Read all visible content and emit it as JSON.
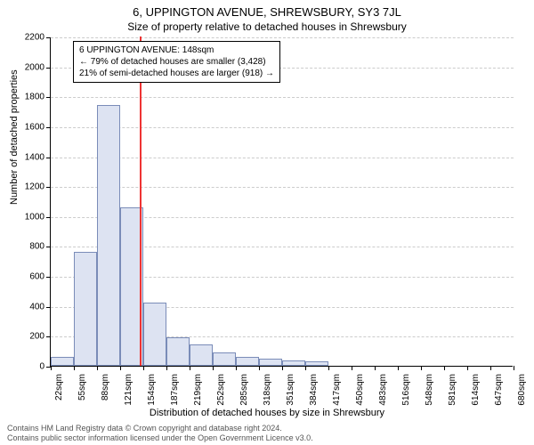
{
  "title": "6, UPPINGTON AVENUE, SHREWSBURY, SY3 7JL",
  "subtitle": "Size of property relative to detached houses in Shrewsbury",
  "xlabel": "Distribution of detached houses by size in Shrewsbury",
  "ylabel": "Number of detached properties",
  "chart": {
    "type": "histogram",
    "ylim": [
      0,
      2200
    ],
    "yticks": [
      0,
      200,
      400,
      600,
      800,
      1000,
      1200,
      1400,
      1600,
      1800,
      2000,
      2200
    ],
    "xticks": [
      "22sqm",
      "55sqm",
      "88sqm",
      "121sqm",
      "154sqm",
      "187sqm",
      "219sqm",
      "252sqm",
      "285sqm",
      "318sqm",
      "351sqm",
      "384sqm",
      "417sqm",
      "450sqm",
      "483sqm",
      "516sqm",
      "548sqm",
      "581sqm",
      "614sqm",
      "647sqm",
      "680sqm"
    ],
    "bar_values": [
      60,
      760,
      1740,
      1060,
      420,
      190,
      140,
      90,
      60,
      45,
      35,
      30,
      0,
      0,
      0,
      0,
      0,
      0,
      0,
      0
    ],
    "bar_fill": "#dde3f2",
    "bar_stroke": "#7a8cb8",
    "grid_color": "#cccccc",
    "background_color": "#ffffff",
    "marker_position_pct": 19.2,
    "marker_color": "#ee3333"
  },
  "annotation": {
    "line1": "6 UPPINGTON AVENUE: 148sqm",
    "line2": "← 79% of detached houses are smaller (3,428)",
    "line3": "21% of semi-detached houses are larger (918) →"
  },
  "footer": {
    "line1": "Contains HM Land Registry data © Crown copyright and database right 2024.",
    "line2": "Contains public sector information licensed under the Open Government Licence v3.0."
  }
}
